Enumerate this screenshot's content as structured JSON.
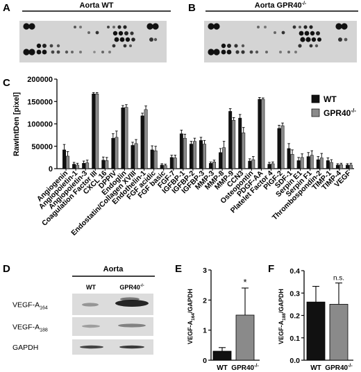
{
  "panels": {
    "A": {
      "letter": "A",
      "title": "Aorta WT"
    },
    "B": {
      "letter": "B",
      "title": "Aorta GPR40",
      "title_sup": "-/-"
    },
    "C": {
      "letter": "C"
    },
    "D": {
      "letter": "D",
      "title": "Aorta",
      "col1": "WT",
      "col2": "GPR40",
      "col2_sup": "-/-",
      "rows": [
        {
          "label": "VEGF-A",
          "sub": "164"
        },
        {
          "label": "VEGF-A",
          "sub": "188"
        },
        {
          "label": "GAPDH",
          "sub": ""
        }
      ]
    },
    "E": {
      "letter": "E"
    },
    "F": {
      "letter": "F"
    }
  },
  "chart_data": [
    {
      "id": "C",
      "type": "bar",
      "ylabel": "RawIntDen [pixel]",
      "ylim": [
        0,
        200000
      ],
      "yticks": [
        0,
        50000,
        100000,
        150000,
        200000
      ],
      "ytick_labels": [
        "0",
        "50000",
        "100000",
        "150000",
        "200000"
      ],
      "legend_placement": "top-right",
      "categories": [
        "Angiogenin",
        "Angiopoietin-1",
        "Angiopoietin-3",
        "Coagulation Factor III",
        "CXCL 16",
        "DPPIV",
        "Endoglin",
        "Endostatin/Collagen XVIII",
        "Endothelin-1",
        "FGF acidic",
        "FGF basic",
        "FGF-7",
        "IGFBP-1",
        "IGFBP-2",
        "IGFBP-3",
        "MMP-3",
        "MMP-8",
        "MMP-9",
        "CCN3",
        "Osteopontin",
        "PDGF-AA",
        "Platelet Factor 4",
        "PlGF-2",
        "SDF-1",
        "Serpin E1",
        "Serpin F1",
        "Thrombospondin-2",
        "TIMP-1",
        "TIMP-4",
        "VEGF"
      ],
      "series": [
        {
          "name": "WT",
          "sup": "",
          "color": "#111111",
          "values": [
            42000,
            10000,
            12000,
            167000,
            19000,
            68000,
            136000,
            52000,
            118000,
            42000,
            8000,
            25000,
            78000,
            55000,
            63000,
            12000,
            36000,
            128000,
            113000,
            17000,
            155000,
            10000,
            90000,
            45000,
            18000,
            27000,
            20000,
            18000,
            8000,
            8000
          ],
          "errors": [
            12000,
            4000,
            5000,
            3000,
            7000,
            10000,
            5000,
            7000,
            6000,
            9000,
            3000,
            5000,
            8000,
            6000,
            7000,
            3000,
            9000,
            6000,
            8000,
            5000,
            4000,
            4000,
            7000,
            11000,
            7000,
            9000,
            7000,
            6000,
            3000,
            3000
          ]
        },
        {
          "name": "GPR40",
          "sup": "-/-",
          "color": "#8a8a8a",
          "values": [
            28000,
            8000,
            13000,
            167000,
            18000,
            70000,
            137000,
            56000,
            132000,
            40000,
            7000,
            24000,
            68000,
            61000,
            55000,
            15000,
            47000,
            108000,
            80000,
            20000,
            155000,
            11000,
            96000,
            32000,
            25000,
            30000,
            24000,
            14000,
            9000,
            8000
          ],
          "errors": [
            10000,
            4000,
            6000,
            3000,
            7000,
            14000,
            6000,
            9000,
            8000,
            10000,
            3000,
            6000,
            9000,
            7000,
            8000,
            4000,
            14000,
            6000,
            12000,
            7000,
            3000,
            4000,
            6000,
            10000,
            8000,
            10000,
            10000,
            6000,
            3000,
            4000
          ]
        }
      ]
    },
    {
      "id": "E",
      "type": "bar",
      "ylabel": "VEGF-A",
      "ylabel_sub": "164",
      "ylabel_suffix": "/GAPDH",
      "ylim": [
        0,
        3
      ],
      "yticks": [
        0,
        1,
        2,
        3
      ],
      "ytick_labels": [
        "0",
        "1",
        "2",
        "3"
      ],
      "categories": [
        "WT",
        "GPR40"
      ],
      "category_sups": [
        "",
        "-/-"
      ],
      "values": [
        0.3,
        1.5
      ],
      "errors": [
        0.12,
        0.9
      ],
      "colors": [
        "#111111",
        "#8a8a8a"
      ],
      "annotations": [
        "",
        "*"
      ]
    },
    {
      "id": "F",
      "type": "bar",
      "ylabel": "VEGF-A",
      "ylabel_sub": "188",
      "ylabel_suffix": "/GAPDH",
      "ylim": [
        0,
        0.4
      ],
      "yticks": [
        0,
        0.1,
        0.2,
        0.3,
        0.4
      ],
      "ytick_labels": [
        "0.0",
        "0.1",
        "0.2",
        "0.3",
        "0.4"
      ],
      "categories": [
        "WT",
        "GPR40"
      ],
      "category_sups": [
        "",
        "-/-"
      ],
      "values": [
        0.26,
        0.25
      ],
      "errors": [
        0.07,
        0.095
      ],
      "colors": [
        "#111111",
        "#8a8a8a"
      ],
      "annotations": [
        "",
        "n.s."
      ]
    }
  ]
}
